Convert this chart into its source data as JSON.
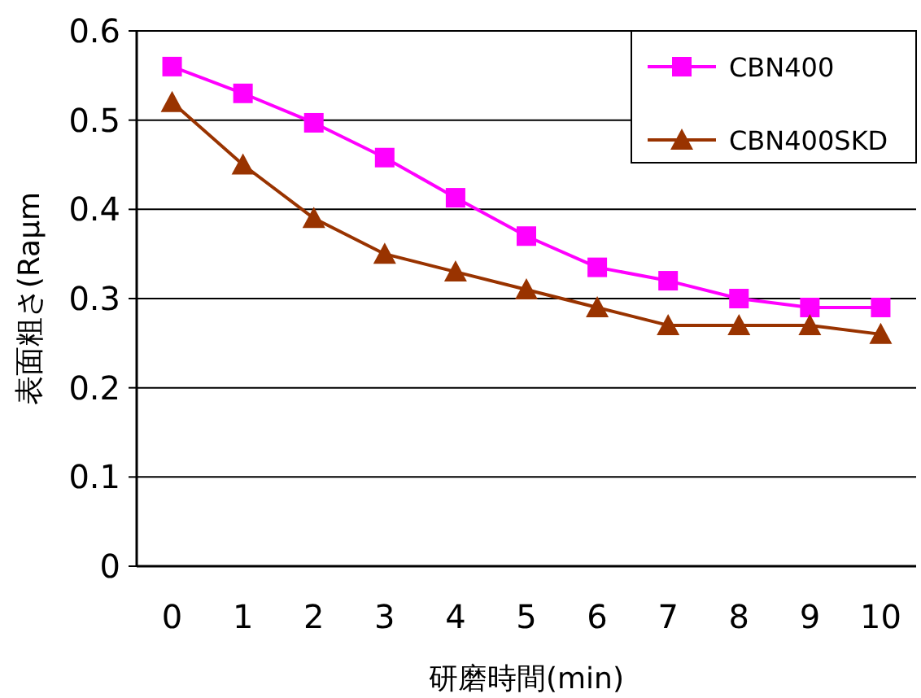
{
  "chart_data": {
    "type": "line",
    "xlabel": "研磨時間(min)",
    "ylabel": "表面粗さ(Raμm",
    "categories": [
      "0",
      "1",
      "2",
      "3",
      "4",
      "5",
      "6",
      "7",
      "8",
      "9",
      "10"
    ],
    "series": [
      {
        "name": "CBN400",
        "color": "#ff00ff",
        "marker": "square",
        "values": [
          0.56,
          0.53,
          0.497,
          0.458,
          0.413,
          0.37,
          0.335,
          0.32,
          0.3,
          0.29,
          0.29
        ]
      },
      {
        "name": "CBN400SKD",
        "color": "#993300",
        "marker": "triangle",
        "values": [
          0.52,
          0.45,
          0.39,
          0.35,
          0.33,
          0.31,
          0.29,
          0.27,
          0.27,
          0.27,
          0.26
        ]
      }
    ],
    "ylim": [
      0,
      0.6
    ],
    "yticks": [
      0,
      0.1,
      0.2,
      0.3,
      0.4,
      0.5,
      0.6
    ],
    "grid": "y",
    "legend": "top right",
    "line_style": "solid"
  }
}
